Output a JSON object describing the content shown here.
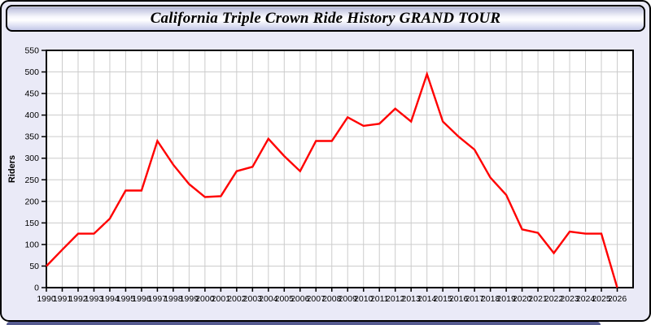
{
  "header": {
    "title": "California Triple Crown Ride History GRAND TOUR"
  },
  "chart_data": {
    "type": "line",
    "title": "California Triple Crown Ride History GRAND TOUR",
    "xlabel": "",
    "ylabel": "Riders",
    "x": [
      1990,
      1991,
      1992,
      1993,
      1994,
      1995,
      1996,
      1997,
      1998,
      1999,
      2000,
      2001,
      2002,
      2003,
      2004,
      2005,
      2006,
      2007,
      2008,
      2009,
      2010,
      2011,
      2012,
      2013,
      2014,
      2015,
      2016,
      2017,
      2018,
      2019,
      2020,
      2021,
      2022,
      2023,
      2024,
      2025,
      2026
    ],
    "xticklabels": [
      "1990",
      "1991",
      "1992",
      "1993",
      "1994",
      "1995",
      "1996",
      "1997",
      "1998",
      "1999",
      "2000",
      "2001",
      "2002",
      "2003",
      "2004",
      "2005",
      "2006",
      "2007",
      "2008",
      "2009",
      "2010",
      "2011",
      "2012",
      "2013",
      "2014",
      "2015",
      "2016",
      "2017",
      "2018",
      "2019",
      "2020",
      "2021",
      "2022",
      "2023",
      "2024",
      "2025",
      "2026"
    ],
    "series": [
      {
        "name": "Riders",
        "color": "#ff0000",
        "values": [
          50,
          88,
          125,
          125,
          160,
          225,
          225,
          340,
          285,
          240,
          210,
          212,
          270,
          280,
          345,
          305,
          270,
          340,
          340,
          395,
          375,
          380,
          415,
          385,
          495,
          385,
          350,
          320,
          255,
          215,
          135,
          127,
          80,
          130,
          125,
          125,
          0
        ]
      }
    ],
    "ylim": [
      0,
      550
    ],
    "ytick_step": 50,
    "yticklabels": [
      "0",
      "50",
      "100",
      "150",
      "200",
      "250",
      "300",
      "350",
      "400",
      "450",
      "500",
      "550"
    ],
    "xlim": [
      1990,
      2027
    ],
    "grid": true,
    "legend_position": "none",
    "plot_bg": "#ffffff",
    "grid_color": "#cccccc",
    "axis_color": "#000000",
    "tick_label_color": "#000000"
  },
  "colors": {
    "page_bg": "#eaeaf7",
    "accent_line": "#ff0000",
    "footer_strip": "#565b90",
    "border": "#000000"
  }
}
